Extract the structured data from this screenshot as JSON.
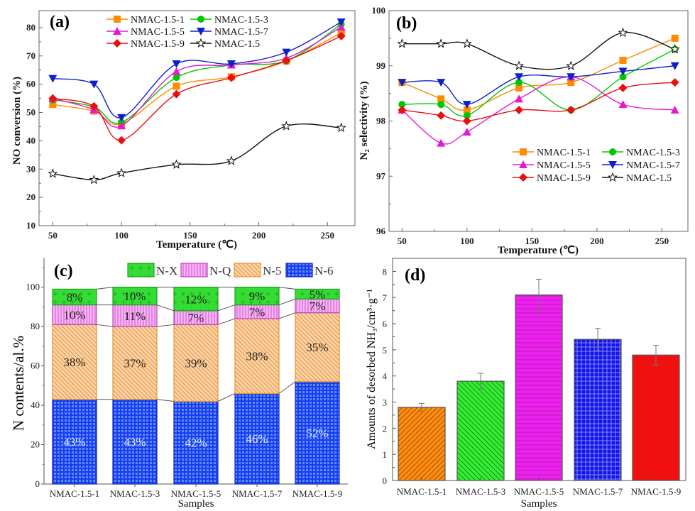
{
  "chart_data": [
    {
      "type": "line",
      "panel_label": "(a)",
      "xlabel": "Temperature (℃)",
      "ylabel": "NO conversion (%)",
      "xlim": [
        40,
        270
      ],
      "ylim": [
        10,
        86
      ],
      "xticks": [
        50,
        100,
        150,
        200,
        250
      ],
      "yticks": [
        10,
        20,
        30,
        40,
        50,
        60,
        70,
        80
      ],
      "legend_position": "top",
      "x": [
        50,
        80,
        100,
        140,
        180,
        220,
        260
      ],
      "series": [
        {
          "name": "NMAC-1.5-1",
          "color": "#ff8c00",
          "marker": "square",
          "values": [
            52.8,
            50.5,
            46,
            59.3,
            62.6,
            68.2,
            78.2
          ]
        },
        {
          "name": "NMAC-1.5-3",
          "color": "#00c800",
          "marker": "circle",
          "values": [
            54.5,
            52,
            46.5,
            62.4,
            66.8,
            68.3,
            81.2
          ]
        },
        {
          "name": "NMAC-1.5-5",
          "color": "#e619d2",
          "marker": "triangle-up",
          "values": [
            55,
            51,
            45.3,
            64.5,
            66.8,
            69.2,
            80.2
          ]
        },
        {
          "name": "NMAC-1.5-7",
          "color": "#1020c8",
          "marker": "triangle-down",
          "values": [
            62,
            60,
            48.2,
            67.2,
            67.2,
            71.3,
            82
          ]
        },
        {
          "name": "NMAC-1.5-9",
          "color": "#e81010",
          "marker": "diamond",
          "values": [
            55,
            52.2,
            40.2,
            56.5,
            62.3,
            68.3,
            77
          ]
        },
        {
          "name": "NMAC-1.5",
          "color": "#111111",
          "marker": "star-open",
          "values": [
            28.4,
            26.2,
            28.6,
            31.6,
            32.9,
            45.2,
            44.6
          ]
        }
      ]
    },
    {
      "type": "line",
      "panel_label": "(b)",
      "xlabel": "Temperature (℃)",
      "ylabel": "N₂ selectivity (%)",
      "xlim": [
        40,
        270
      ],
      "ylim": [
        96,
        100
      ],
      "xticks": [
        50,
        100,
        150,
        200,
        250
      ],
      "yticks": [
        96,
        97,
        98,
        99,
        100
      ],
      "legend_position": "bottom-right",
      "x": [
        50,
        80,
        100,
        140,
        180,
        220,
        260
      ],
      "series": [
        {
          "name": "NMAC-1.5-1",
          "color": "#ff8c00",
          "marker": "square",
          "values": [
            98.7,
            98.4,
            98.2,
            98.6,
            98.7,
            99.1,
            99.5
          ]
        },
        {
          "name": "NMAC-1.5-3",
          "color": "#00c800",
          "marker": "circle",
          "values": [
            98.3,
            98.3,
            98.1,
            98.7,
            98.2,
            98.8,
            99.3
          ]
        },
        {
          "name": "NMAC-1.5-5",
          "color": "#e619d2",
          "marker": "triangle-up",
          "values": [
            98.2,
            97.6,
            97.8,
            98.4,
            98.8,
            98.3,
            98.2
          ]
        },
        {
          "name": "NMAC-1.5-7",
          "color": "#1020c8",
          "marker": "triangle-down",
          "values": [
            98.7,
            98.7,
            98.3,
            98.8,
            98.8,
            98.9,
            99.0
          ]
        },
        {
          "name": "NMAC-1.5-9",
          "color": "#e81010",
          "marker": "diamond",
          "values": [
            98.2,
            98.1,
            98.0,
            98.2,
            98.2,
            98.6,
            98.7
          ]
        },
        {
          "name": "NMAC-1.5",
          "color": "#111111",
          "marker": "star-open",
          "values": [
            99.4,
            99.4,
            99.4,
            99.0,
            99.0,
            99.6,
            99.3
          ]
        }
      ]
    },
    {
      "type": "bar",
      "stacked": true,
      "panel_label": "(c)",
      "xlabel": "Samples",
      "ylabel": "N contents/al.%",
      "ylim": [
        0,
        115
      ],
      "yticks": [
        0,
        20,
        40,
        60,
        80,
        100
      ],
      "legend_position": "top",
      "categories": [
        "NMAC-1.5-1",
        "NMAC-1.5-3",
        "NMAC-1.5-5",
        "NMAC-1.5-7",
        "NMAC-1.5-9"
      ],
      "series": [
        {
          "name": "N-6",
          "color": "#1a3cf0",
          "values": [
            43,
            43,
            42,
            46,
            52
          ],
          "labels": [
            "43%",
            "43%",
            "42%",
            "46%",
            "52%"
          ]
        },
        {
          "name": "N-5",
          "color": "#f7b877",
          "values": [
            38,
            37,
            39,
            38,
            35
          ],
          "labels": [
            "38%",
            "37%",
            "39%",
            "38%",
            "35%"
          ]
        },
        {
          "name": "N-Q",
          "color": "#f3a6f0",
          "values": [
            10,
            11,
            7,
            7,
            7
          ],
          "labels": [
            "10%",
            "11%",
            "7%",
            "7%",
            "7%"
          ]
        },
        {
          "name": "N-X",
          "color": "#33dd33",
          "values": [
            8,
            10,
            12,
            9,
            5
          ],
          "labels": [
            "8%",
            "10%",
            "12%",
            "9%",
            "5%"
          ]
        }
      ],
      "legend_order": [
        "N-X",
        "N-Q",
        "N-5",
        "N-6"
      ]
    },
    {
      "type": "bar",
      "panel_label": "(d)",
      "xlabel": "Samples",
      "ylabel": "Amounts of desorbed NH₃/cm³·g⁻¹",
      "ylim": [
        0,
        8.5
      ],
      "yticks": [
        0,
        1,
        2,
        3,
        4,
        5,
        6,
        7,
        8
      ],
      "categories": [
        "NMAC-1.5-1",
        "NMAC-1.5-3",
        "NMAC-1.5-5",
        "NMAC-1.5-7",
        "NMAC-1.5-9"
      ],
      "values": [
        2.8,
        3.8,
        7.1,
        5.4,
        4.8
      ],
      "errors": [
        0.15,
        0.3,
        0.6,
        0.42,
        0.37
      ],
      "colors": [
        "#ff8c10",
        "#33ee33",
        "#f020f0",
        "#1414e6",
        "#f01010"
      ]
    }
  ]
}
